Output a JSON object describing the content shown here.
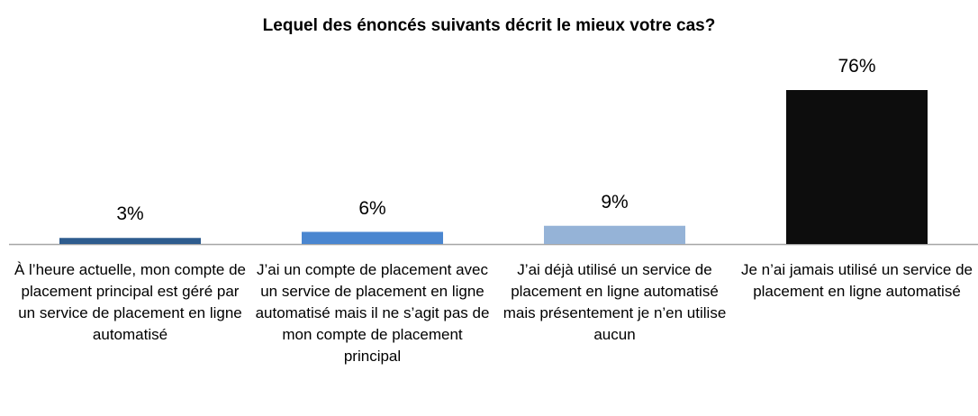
{
  "chart_data": {
    "type": "bar",
    "title": "Lequel des énoncés suivants décrit le mieux votre cas?",
    "categories": [
      "À l’heure actuelle, mon compte de placement principal est géré par un service de placement en ligne automatisé",
      "J’ai un compte de placement avec un service de placement en ligne automatisé mais il ne s’agit pas de mon compte de placement principal",
      "J’ai déjà utilisé un service de placement en ligne automatisé mais présentement je n’en utilise aucun",
      "Je n’ai jamais utilisé un service de placement en ligne automatisé"
    ],
    "values": [
      3,
      6,
      9,
      76
    ],
    "value_labels": [
      "3%",
      "6%",
      "9%",
      "76%"
    ],
    "colors": [
      "#2e5c8e",
      "#4a86d0",
      "#95b3d7",
      "#0d0d0d"
    ]
  }
}
